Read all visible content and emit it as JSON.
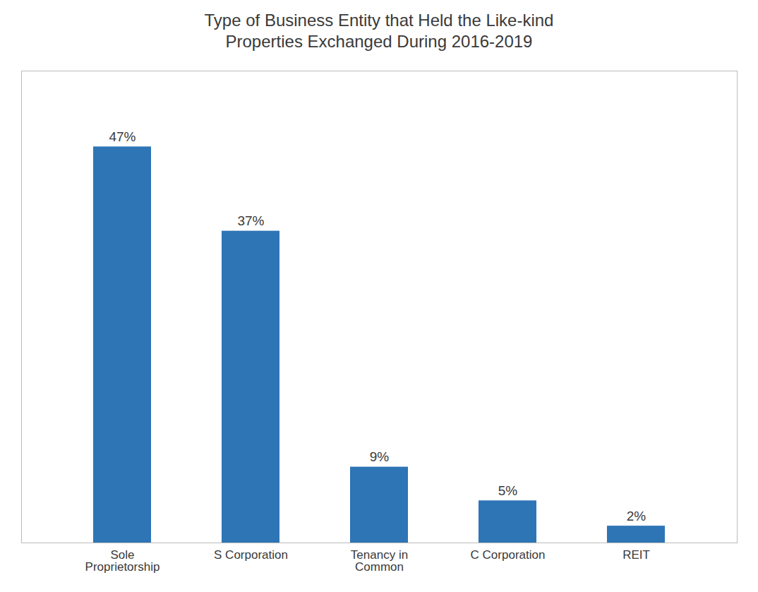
{
  "chart_data": {
    "type": "bar",
    "title": "Type of Business Entity that Held the Like-kind\nProperties Exchanged During 2016-2019",
    "categories": [
      "Sole\nProprietorship",
      "S Corporation",
      "Tenancy in\nCommon",
      "C Corporation",
      "REIT"
    ],
    "values": [
      47,
      37,
      9,
      5,
      2
    ],
    "value_labels": [
      "47%",
      "37%",
      "9%",
      "5%",
      "2%"
    ],
    "data_labels": true,
    "color": "#2e75b6",
    "ylim": [
      0,
      56
    ],
    "tick_labels": "x",
    "grid": false
  }
}
